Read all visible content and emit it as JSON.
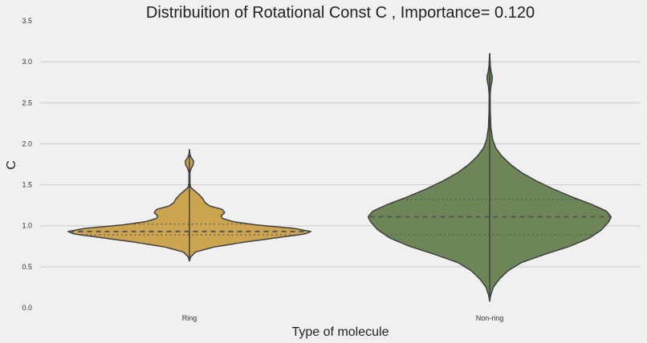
{
  "chart_data": {
    "type": "violin",
    "title": "Distribuition of Rotational Const C , Importance= 0.120",
    "xlabel": "Type of molecule",
    "ylabel": "C",
    "ylim": [
      0.0,
      3.5
    ],
    "yticks": [
      "0.0",
      "0.5",
      "1.0",
      "1.5",
      "2.0",
      "2.5",
      "3.0",
      "3.5"
    ],
    "grid": "horizontal",
    "categories": [
      "Ring",
      "Non-ring"
    ],
    "series": [
      {
        "name": "Ring",
        "color": "#cda550",
        "min": 0.57,
        "max": 1.93,
        "median": 0.93,
        "q1": 0.89,
        "q3": 1.02,
        "density": [
          [
            0.57,
            0
          ],
          [
            0.62,
            0.01
          ],
          [
            0.68,
            0.05
          ],
          [
            0.74,
            0.2
          ],
          [
            0.8,
            0.45
          ],
          [
            0.86,
            0.75
          ],
          [
            0.9,
            0.95
          ],
          [
            0.93,
            1.0
          ],
          [
            0.97,
            0.85
          ],
          [
            1.01,
            0.55
          ],
          [
            1.05,
            0.36
          ],
          [
            1.09,
            0.27
          ],
          [
            1.12,
            0.26
          ],
          [
            1.16,
            0.29
          ],
          [
            1.2,
            0.27
          ],
          [
            1.24,
            0.17
          ],
          [
            1.28,
            0.13
          ],
          [
            1.33,
            0.11
          ],
          [
            1.38,
            0.08
          ],
          [
            1.43,
            0.04
          ],
          [
            1.47,
            0.01
          ],
          [
            1.52,
            0.004
          ],
          [
            1.65,
            0.004
          ],
          [
            1.7,
            0.015
          ],
          [
            1.75,
            0.032
          ],
          [
            1.79,
            0.034
          ],
          [
            1.83,
            0.015
          ],
          [
            1.87,
            0.004
          ],
          [
            1.93,
            0
          ]
        ]
      },
      {
        "name": "Non-ring",
        "color": "#6d8657",
        "min": 0.08,
        "max": 3.1,
        "median": 1.11,
        "q1": 0.89,
        "q3": 1.32,
        "density": [
          [
            0.08,
            0
          ],
          [
            0.15,
            0.008
          ],
          [
            0.25,
            0.03
          ],
          [
            0.35,
            0.08
          ],
          [
            0.45,
            0.15
          ],
          [
            0.55,
            0.26
          ],
          [
            0.65,
            0.45
          ],
          [
            0.75,
            0.66
          ],
          [
            0.85,
            0.82
          ],
          [
            0.95,
            0.92
          ],
          [
            1.05,
            0.98
          ],
          [
            1.11,
            1.0
          ],
          [
            1.18,
            0.96
          ],
          [
            1.26,
            0.84
          ],
          [
            1.35,
            0.68
          ],
          [
            1.45,
            0.52
          ],
          [
            1.55,
            0.38
          ],
          [
            1.65,
            0.26
          ],
          [
            1.75,
            0.17
          ],
          [
            1.85,
            0.1
          ],
          [
            1.95,
            0.05
          ],
          [
            2.05,
            0.025
          ],
          [
            2.2,
            0.01
          ],
          [
            2.4,
            0.005
          ],
          [
            2.6,
            0.004
          ],
          [
            2.7,
            0.01
          ],
          [
            2.77,
            0.02
          ],
          [
            2.82,
            0.022
          ],
          [
            2.88,
            0.012
          ],
          [
            2.95,
            0.005
          ],
          [
            3.02,
            0.003
          ],
          [
            3.1,
            0
          ]
        ]
      }
    ]
  }
}
